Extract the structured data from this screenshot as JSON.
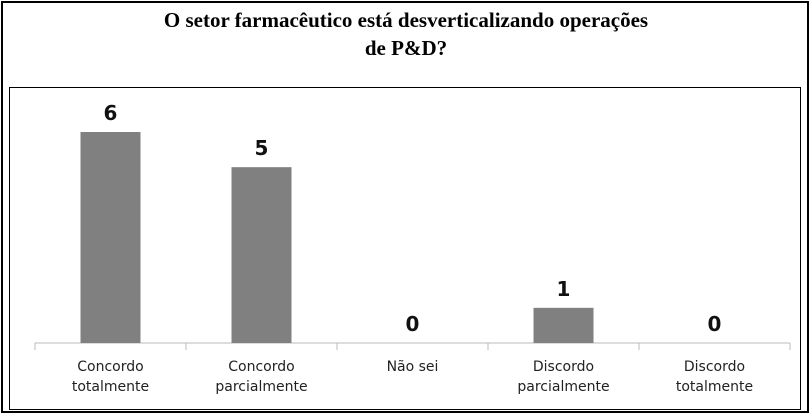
{
  "chart_data": {
    "type": "bar",
    "title": "O setor farmacêutico está desverticalizando operações de P&D?",
    "categories": [
      "Concordo totalmente",
      "Concordo parcialmente",
      "Não sei",
      "Discordo parcialmente",
      "Discordo totalmente"
    ],
    "values": [
      6,
      5,
      0,
      1,
      0
    ],
    "color": "#808080"
  }
}
